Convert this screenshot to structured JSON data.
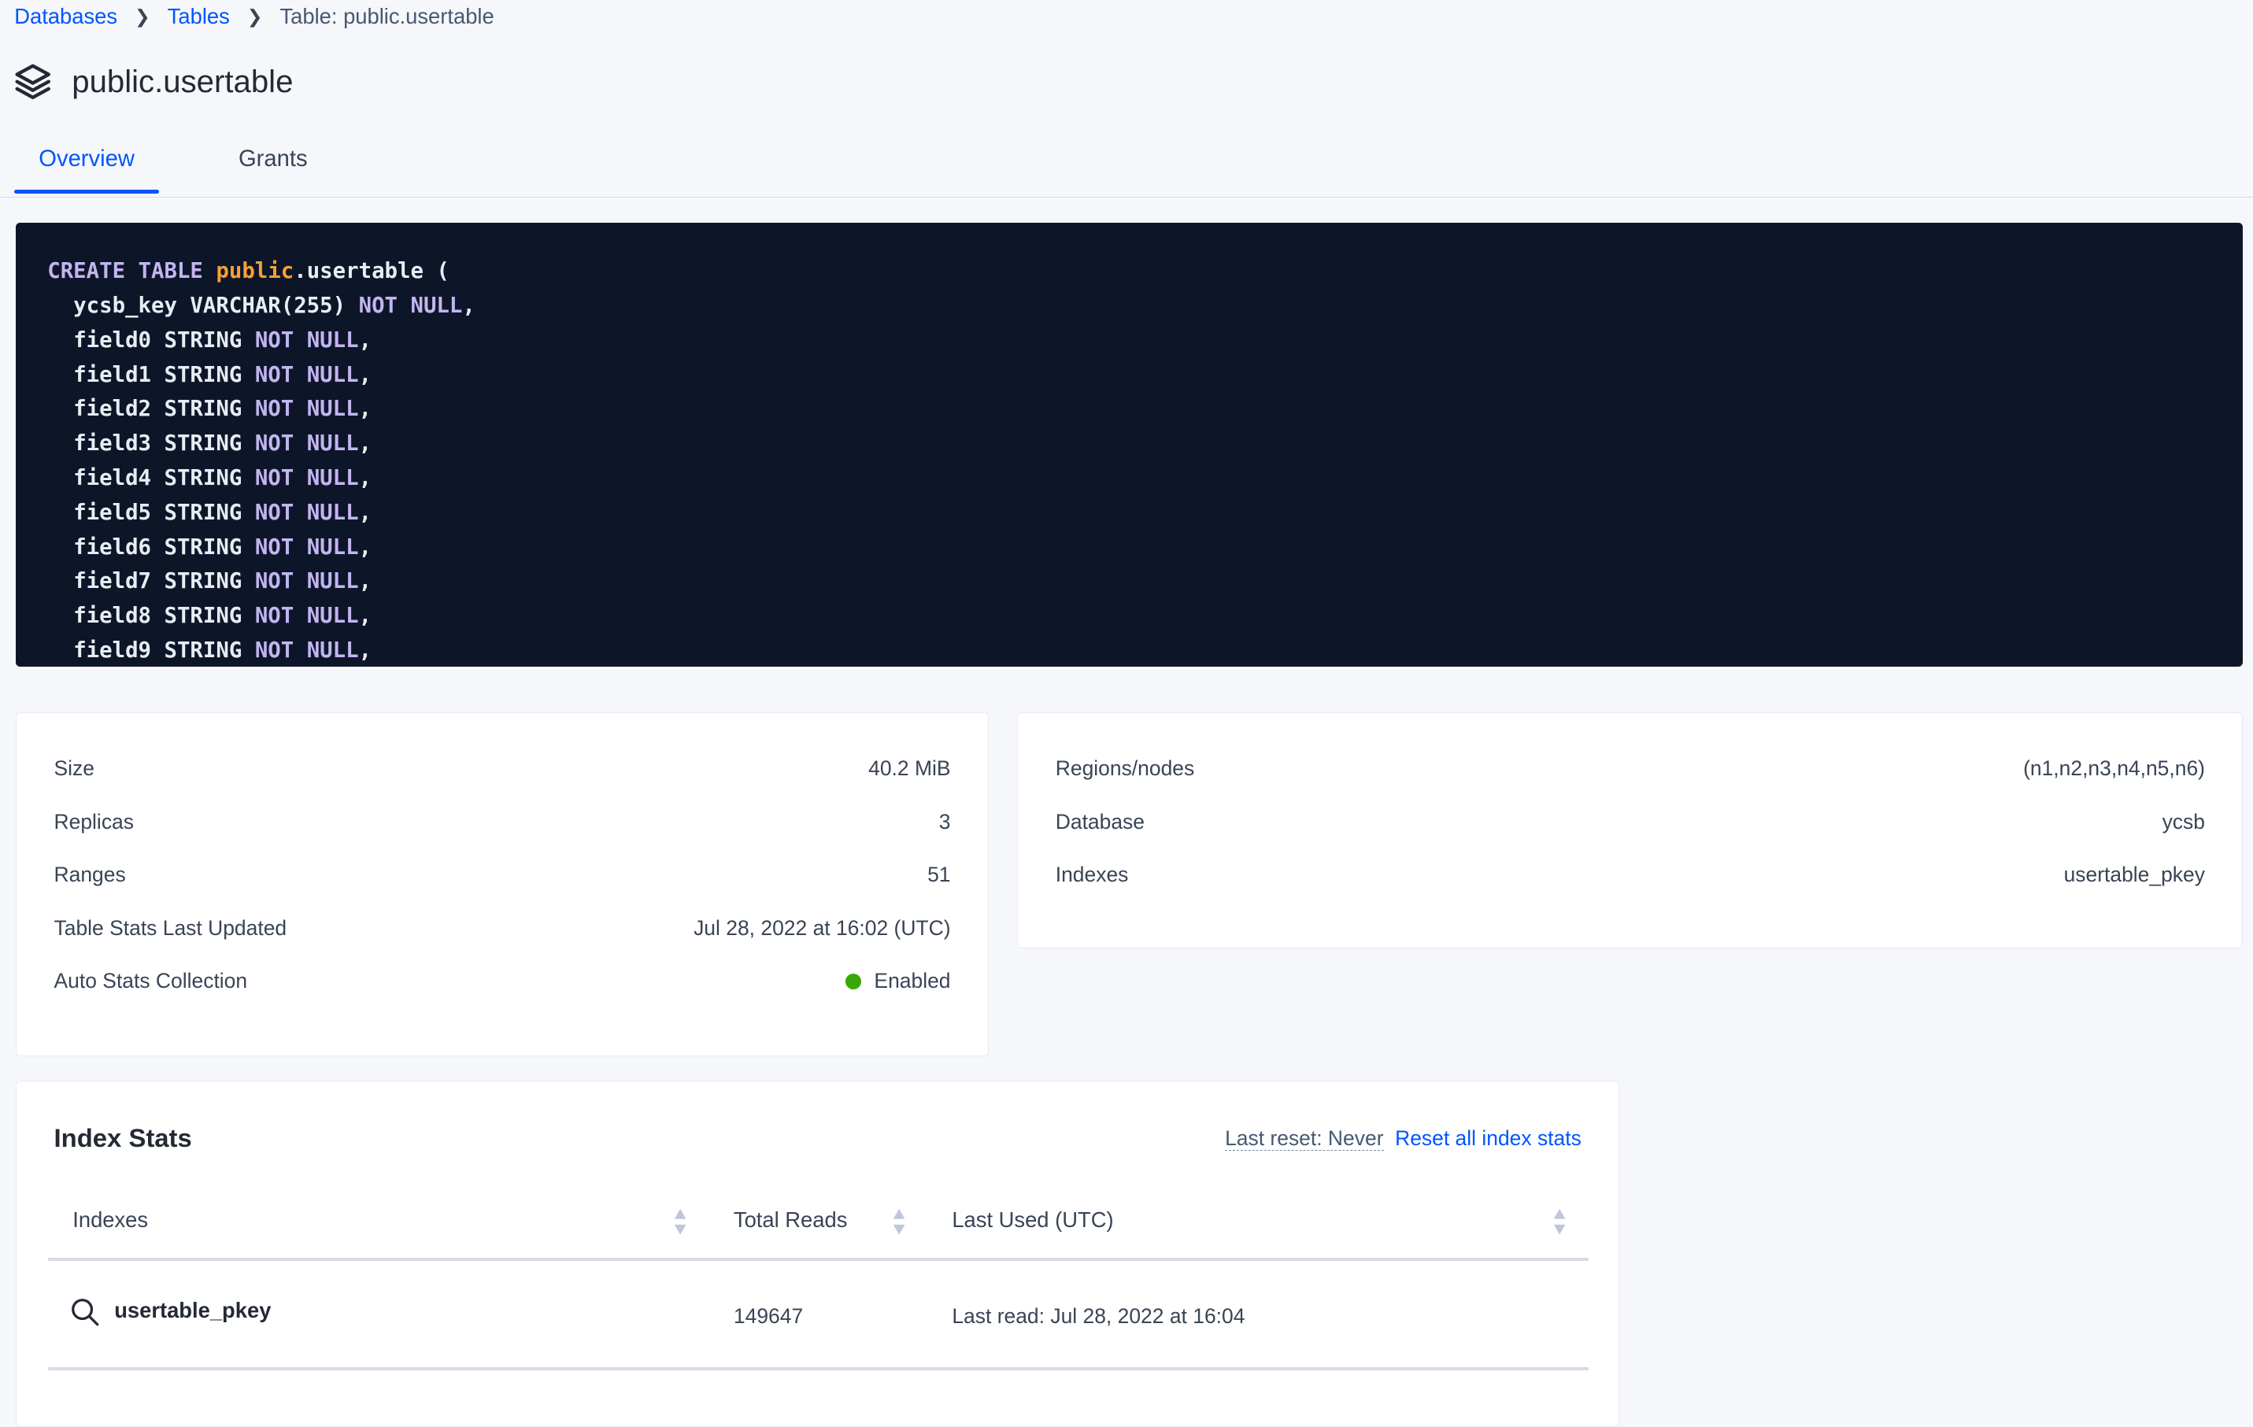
{
  "breadcrumb": {
    "items": [
      {
        "label": "Databases"
      },
      {
        "label": "Tables"
      }
    ],
    "current": "Table: public.usertable"
  },
  "header": {
    "title": "public.usertable",
    "icon": "stack-icon"
  },
  "tabs": [
    {
      "label": "Overview",
      "active": true
    },
    {
      "label": "Grants",
      "active": false
    }
  ],
  "ddl": {
    "first": {
      "kw": "CREATE TABLE",
      "schema": "public",
      "rest": ".usertable ("
    },
    "key": {
      "name": "ycsb_key VARCHAR(255)",
      "kw": "NOT NULL",
      "end": ","
    },
    "fields": [
      {
        "name": "field0 STRING",
        "kw": "NOT NULL",
        "end": ","
      },
      {
        "name": "field1 STRING",
        "kw": "NOT NULL",
        "end": ","
      },
      {
        "name": "field2 STRING",
        "kw": "NOT NULL",
        "end": ","
      },
      {
        "name": "field3 STRING",
        "kw": "NOT NULL",
        "end": ","
      },
      {
        "name": "field4 STRING",
        "kw": "NOT NULL",
        "end": ","
      },
      {
        "name": "field5 STRING",
        "kw": "NOT NULL",
        "end": ","
      },
      {
        "name": "field6 STRING",
        "kw": "NOT NULL",
        "end": ","
      },
      {
        "name": "field7 STRING",
        "kw": "NOT NULL",
        "end": ","
      },
      {
        "name": "field8 STRING",
        "kw": "NOT NULL",
        "end": ","
      },
      {
        "name": "field9 STRING",
        "kw": "NOT NULL",
        "end": ","
      }
    ]
  },
  "summary_left": [
    {
      "label": "Size",
      "value": "40.2 MiB"
    },
    {
      "label": "Replicas",
      "value": "3"
    },
    {
      "label": "Ranges",
      "value": "51"
    },
    {
      "label": "Table Stats Last Updated",
      "value": "Jul 28, 2022 at 16:02 (UTC)"
    },
    {
      "label": "Auto Stats Collection",
      "value": "Enabled",
      "status_color": "#37a806"
    }
  ],
  "summary_right": [
    {
      "label": "Regions/nodes",
      "value": "(n1,n2,n3,n4,n5,n6)"
    },
    {
      "label": "Database",
      "value": "ycsb"
    },
    {
      "label": "Indexes",
      "value": "usertable_pkey"
    }
  ],
  "index_stats": {
    "title": "Index Stats",
    "last_reset": "Last reset: Never",
    "reset_link": "Reset all index stats",
    "columns": [
      "Indexes",
      "Total Reads",
      "Last Used (UTC)"
    ],
    "rows": [
      {
        "index": "usertable_pkey",
        "total_reads": "149647",
        "last_used": "Last read: Jul 28, 2022 at 16:04"
      }
    ]
  },
  "colors": {
    "accent": "#0055ff",
    "code_bg": "#0d1629",
    "keyword": "#c3b5f0",
    "schema": "#f7a033"
  }
}
